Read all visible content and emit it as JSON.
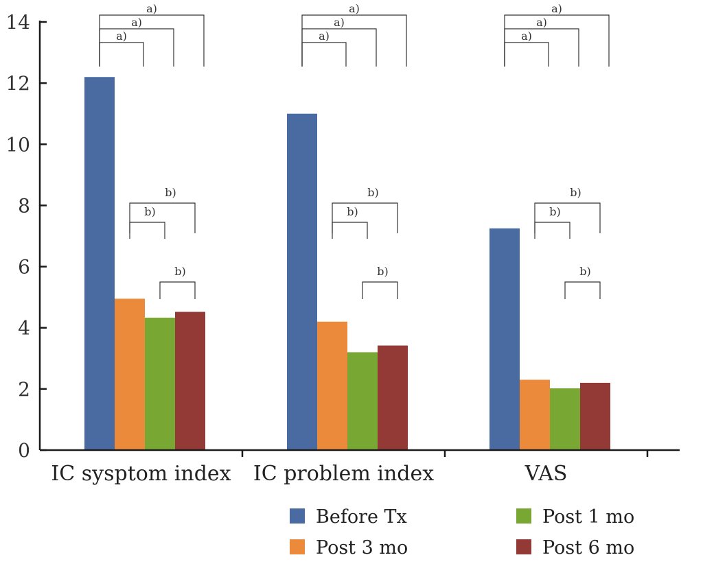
{
  "chart_data": {
    "type": "bar",
    "categories": [
      "IC sysptom index",
      "IC problem index",
      "VAS"
    ],
    "series": [
      {
        "name": "Before Tx",
        "color": "#4a6ba2",
        "values": [
          12.2,
          11.0,
          7.25
        ]
      },
      {
        "name": "Post 3 mo",
        "color": "#ea8a3a",
        "values": [
          4.95,
          4.2,
          2.3
        ]
      },
      {
        "name": "Post 1 mo",
        "color": "#78a733",
        "values": [
          4.33,
          3.2,
          2.02
        ]
      },
      {
        "name": "Post 6 mo",
        "color": "#933a36",
        "values": [
          4.52,
          3.42,
          2.2
        ]
      }
    ],
    "ylim": [
      0,
      14
    ],
    "yticks": [
      0,
      2,
      4,
      6,
      8,
      10,
      12,
      14
    ],
    "xlabel": "",
    "ylabel": "",
    "legend": {
      "placement": "bottom-right",
      "order": [
        "Before Tx",
        "Post 1 mo",
        "Post 3 mo",
        "Post 6 mo"
      ]
    },
    "significance": [
      {
        "group": "IC sysptom index",
        "label": "a)",
        "from": "Before Tx",
        "to": "Post 3 mo"
      },
      {
        "group": "IC sysptom index",
        "label": "a)",
        "from": "Before Tx",
        "to": "Post 1 mo"
      },
      {
        "group": "IC sysptom index",
        "label": "a)",
        "from": "Before Tx",
        "to": "Post 6 mo"
      },
      {
        "group": "IC sysptom index",
        "label": "b)",
        "from": "Post 3 mo",
        "to": "Post 1 mo"
      },
      {
        "group": "IC sysptom index",
        "label": "b)",
        "from": "Post 3 mo",
        "to": "Post 6 mo"
      },
      {
        "group": "IC sysptom index",
        "label": "b)",
        "from": "Post 1 mo",
        "to": "Post 6 mo"
      },
      {
        "group": "IC problem index",
        "label": "a)",
        "from": "Before Tx",
        "to": "Post 3 mo"
      },
      {
        "group": "IC problem index",
        "label": "a)",
        "from": "Before Tx",
        "to": "Post 1 mo"
      },
      {
        "group": "IC problem index",
        "label": "a)",
        "from": "Before Tx",
        "to": "Post 6 mo"
      },
      {
        "group": "IC problem index",
        "label": "b)",
        "from": "Post 3 mo",
        "to": "Post 1 mo"
      },
      {
        "group": "IC problem index",
        "label": "b)",
        "from": "Post 3 mo",
        "to": "Post 6 mo"
      },
      {
        "group": "IC problem index",
        "label": "b)",
        "from": "Post 1 mo",
        "to": "Post 6 mo"
      },
      {
        "group": "VAS",
        "label": "a)",
        "from": "Before Tx",
        "to": "Post 3 mo"
      },
      {
        "group": "VAS",
        "label": "a)",
        "from": "Before Tx",
        "to": "Post 1 mo"
      },
      {
        "group": "VAS",
        "label": "a)",
        "from": "Before Tx",
        "to": "Post 6 mo"
      },
      {
        "group": "VAS",
        "label": "b)",
        "from": "Post 3 mo",
        "to": "Post 1 mo"
      },
      {
        "group": "VAS",
        "label": "b)",
        "from": "Post 3 mo",
        "to": "Post 6 mo"
      },
      {
        "group": "VAS",
        "label": "b)",
        "from": "Post 1 mo",
        "to": "Post 6 mo"
      }
    ]
  }
}
